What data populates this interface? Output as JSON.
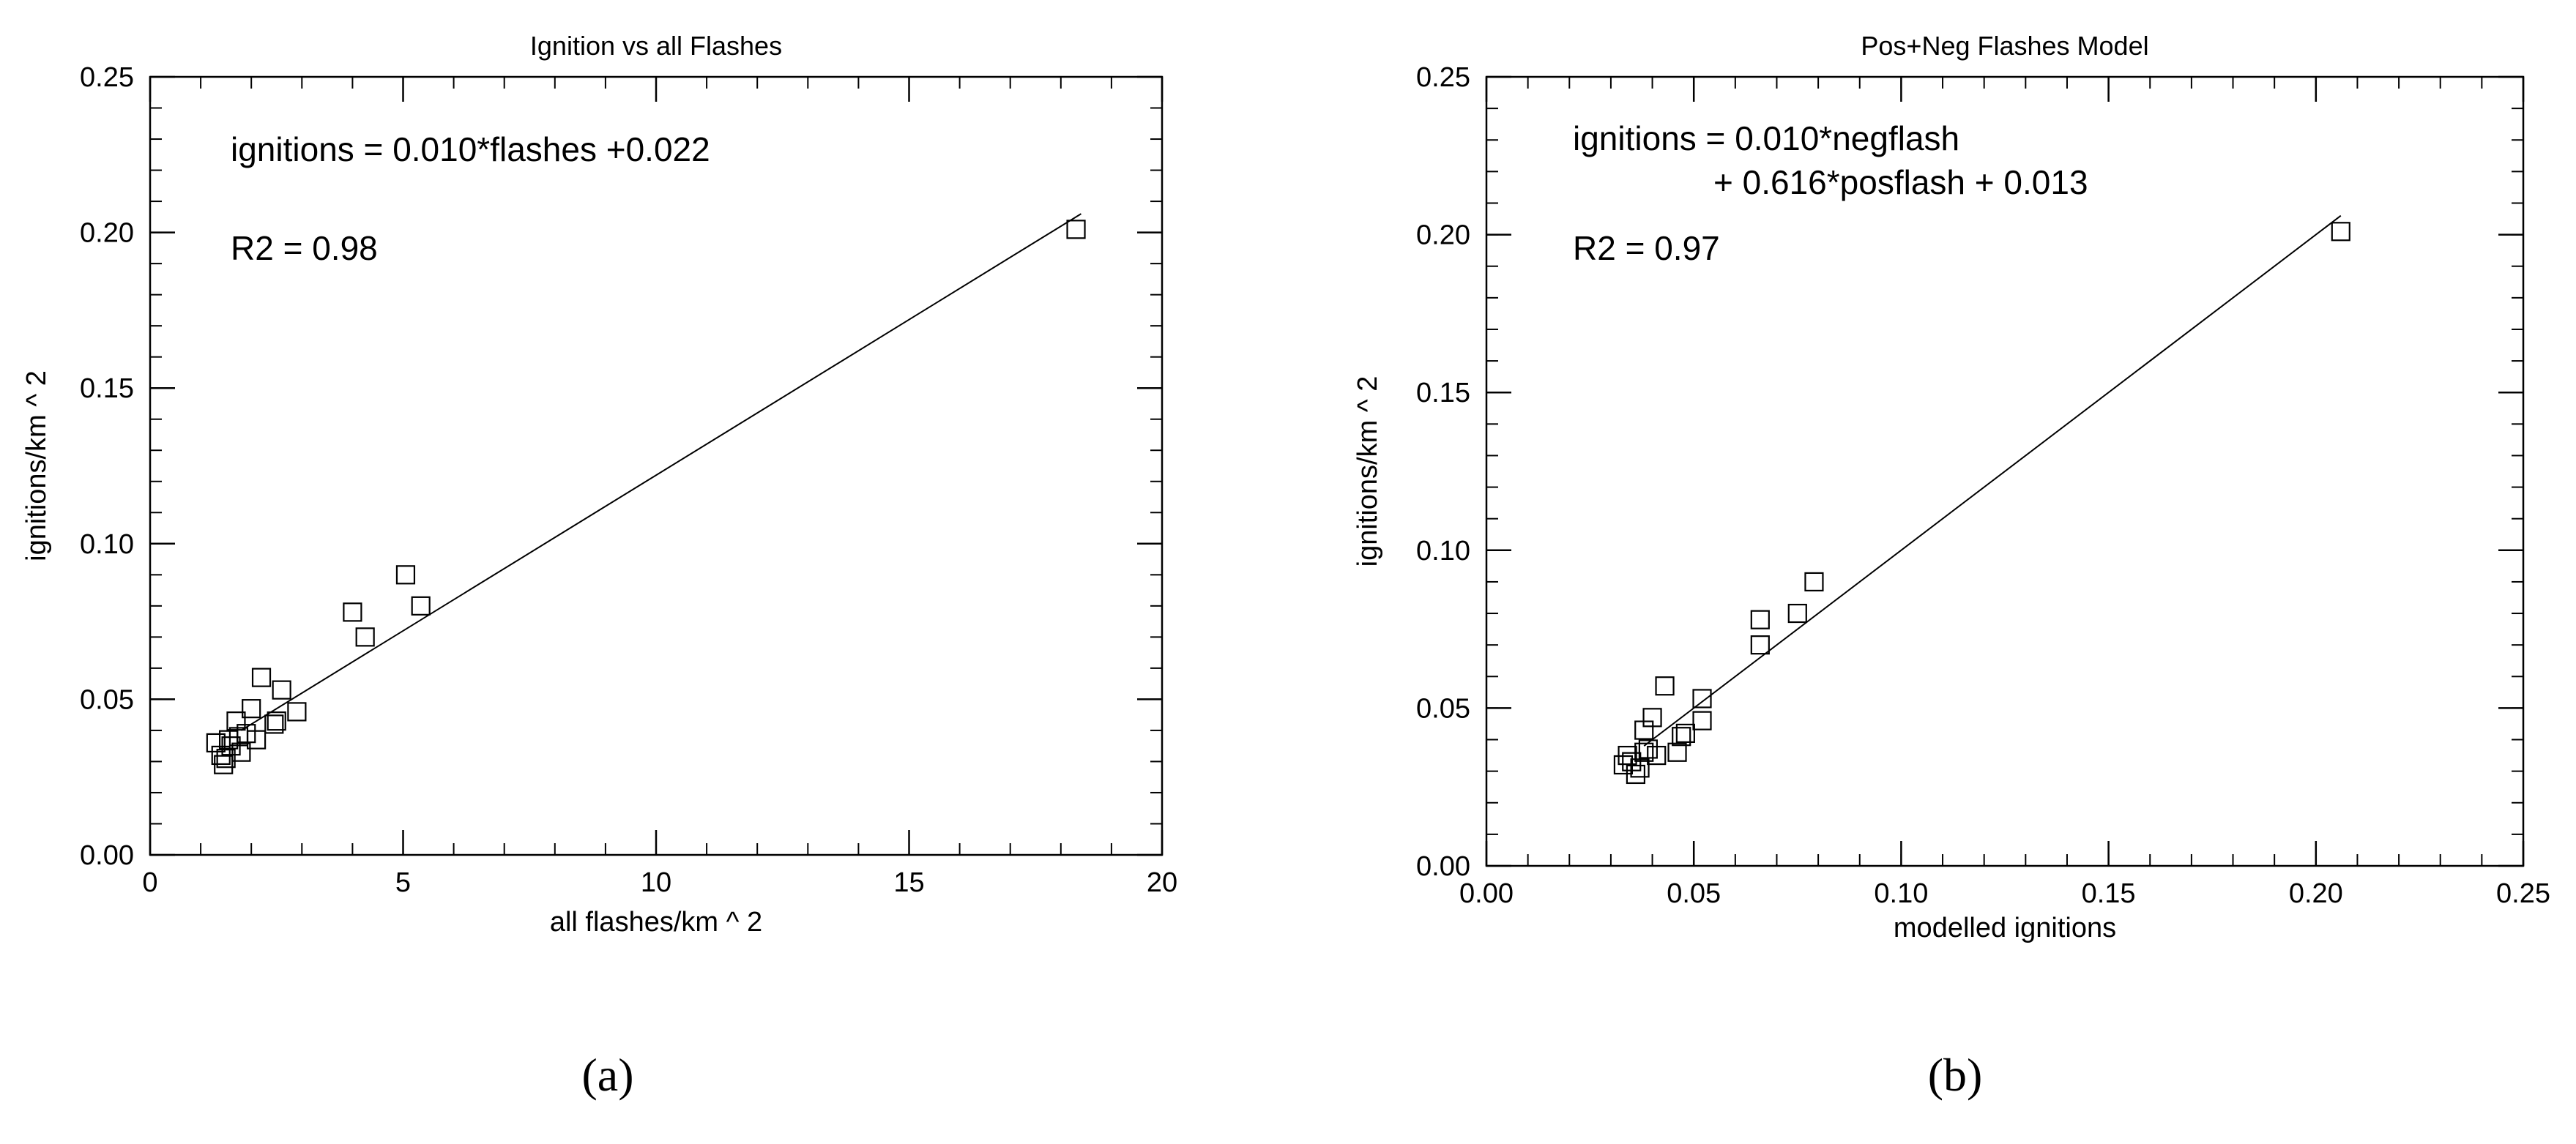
{
  "chart_data": [
    {
      "type": "scatter",
      "panel": "(a)",
      "title": "Ignition vs all Flashes",
      "xlabel": "all flashes/km ^ 2",
      "ylabel": "ignitions/km ^ 2",
      "xlim": [
        0,
        20
      ],
      "ylim": [
        0,
        0.25
      ],
      "xticks": [
        0,
        5,
        10,
        15,
        20
      ],
      "xtick_labels": [
        "0",
        "5",
        "10",
        "15",
        "20"
      ],
      "yticks": [
        0,
        0.05,
        0.1,
        0.15,
        0.2,
        0.25
      ],
      "ytick_labels": [
        "0.00",
        "0.05",
        "0.10",
        "0.15",
        "0.20",
        "0.25"
      ],
      "x_minor_step": 1,
      "y_minor_step": 0.01,
      "grid": false,
      "marker": "open-square",
      "annotations": [
        "ignitions = 0.010*flashes +0.022",
        "R2 = 0.98"
      ],
      "fit_line": {
        "x": [
          1.8,
          18.4
        ]
      },
      "points": [
        [
          1.3,
          0.036
        ],
        [
          1.4,
          0.032
        ],
        [
          1.45,
          0.029
        ],
        [
          1.5,
          0.031
        ],
        [
          1.55,
          0.037
        ],
        [
          1.6,
          0.035
        ],
        [
          1.7,
          0.043
        ],
        [
          1.75,
          0.038
        ],
        [
          1.8,
          0.033
        ],
        [
          1.9,
          0.039
        ],
        [
          2.0,
          0.047
        ],
        [
          2.1,
          0.037
        ],
        [
          2.2,
          0.057
        ],
        [
          2.45,
          0.042
        ],
        [
          2.5,
          0.043
        ],
        [
          2.6,
          0.053
        ],
        [
          2.9,
          0.046
        ],
        [
          4.0,
          0.078
        ],
        [
          4.25,
          0.07
        ],
        [
          5.05,
          0.09
        ],
        [
          5.35,
          0.08
        ],
        [
          18.3,
          0.201
        ]
      ]
    },
    {
      "type": "scatter",
      "panel": "(b)",
      "title": "Pos+Neg Flashes Model",
      "xlabel": "modelled ignitions",
      "ylabel": "ignitions/km ^ 2",
      "xlim": [
        0,
        0.25
      ],
      "ylim": [
        0,
        0.25
      ],
      "xticks": [
        0,
        0.05,
        0.1,
        0.15,
        0.2,
        0.25
      ],
      "xtick_labels": [
        "0.00",
        "0.05",
        "0.10",
        "0.15",
        "0.20",
        "0.25"
      ],
      "yticks": [
        0,
        0.05,
        0.1,
        0.15,
        0.2,
        0.25
      ],
      "ytick_labels": [
        "0.00",
        "0.05",
        "0.10",
        "0.15",
        "0.20",
        "0.25"
      ],
      "x_minor_step": 0.01,
      "y_minor_step": 0.01,
      "grid": false,
      "marker": "open-square",
      "annotations": [
        "ignitions = 0.010*negflash",
        "+ 0.616*posflash + 0.013",
        "R2 = 0.97"
      ],
      "fit_line": {
        "x": [
          0.038,
          0.206
        ]
      },
      "points": [
        [
          0.033,
          0.032
        ],
        [
          0.034,
          0.035
        ],
        [
          0.035,
          0.033
        ],
        [
          0.036,
          0.029
        ],
        [
          0.037,
          0.031
        ],
        [
          0.038,
          0.036
        ],
        [
          0.038,
          0.043
        ],
        [
          0.039,
          0.037
        ],
        [
          0.04,
          0.047
        ],
        [
          0.041,
          0.035
        ],
        [
          0.043,
          0.057
        ],
        [
          0.046,
          0.036
        ],
        [
          0.047,
          0.041
        ],
        [
          0.048,
          0.042
        ],
        [
          0.052,
          0.053
        ],
        [
          0.052,
          0.046
        ],
        [
          0.066,
          0.078
        ],
        [
          0.066,
          0.07
        ],
        [
          0.075,
          0.08
        ],
        [
          0.079,
          0.09
        ],
        [
          0.206,
          0.201
        ]
      ]
    }
  ],
  "captions": [
    "(a)",
    "(b)"
  ]
}
